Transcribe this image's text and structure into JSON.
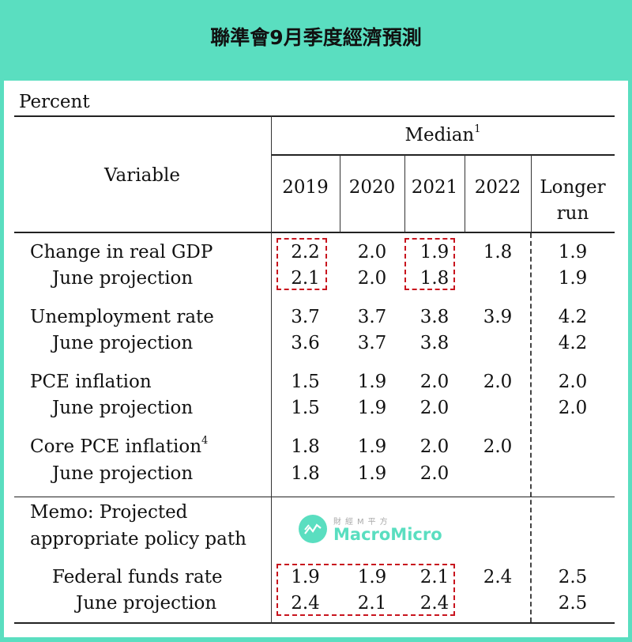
{
  "title": "聯準會9月季度經濟預測",
  "table": {
    "unit": "Percent",
    "header": {
      "variable": "Variable",
      "median": "Median",
      "median_footnote": "1",
      "columns": [
        "2019",
        "2020",
        "2021",
        "2022"
      ],
      "longer_run_line1": "Longer",
      "longer_run_line2": "run"
    },
    "rows": [
      {
        "label": "Change in real GDP",
        "values": [
          "2.2",
          "2.0",
          "1.9",
          "1.8",
          "1.9"
        ]
      },
      {
        "label": "June projection",
        "values": [
          "2.1",
          "2.0",
          "1.8",
          "",
          "1.9"
        ]
      },
      {
        "label": "Unemployment rate",
        "values": [
          "3.7",
          "3.7",
          "3.8",
          "3.9",
          "4.2"
        ]
      },
      {
        "label": "June projection",
        "values": [
          "3.6",
          "3.7",
          "3.8",
          "",
          "4.2"
        ]
      },
      {
        "label": "PCE inflation",
        "values": [
          "1.5",
          "1.9",
          "2.0",
          "2.0",
          "2.0"
        ]
      },
      {
        "label": "June projection",
        "values": [
          "1.5",
          "1.9",
          "2.0",
          "",
          "2.0"
        ]
      },
      {
        "label": "Core PCE inflation",
        "footnote": "4",
        "values": [
          "1.8",
          "1.9",
          "2.0",
          "2.0",
          ""
        ]
      },
      {
        "label": "June projection",
        "values": [
          "1.8",
          "1.9",
          "2.0",
          "",
          ""
        ]
      },
      {
        "label": "Federal funds rate",
        "values": [
          "1.9",
          "1.9",
          "2.1",
          "2.4",
          "2.5"
        ]
      },
      {
        "label": "June projection",
        "values": [
          "2.4",
          "2.1",
          "2.4",
          "",
          "2.5"
        ]
      }
    ],
    "memo_line1": "Memo: Projected",
    "memo_line2": "appropriate policy path"
  },
  "watermark": {
    "sub": "財經M平方",
    "main": "MacroMicro"
  },
  "colors": {
    "background": "#5adec0",
    "highlight": "#c8141e"
  }
}
